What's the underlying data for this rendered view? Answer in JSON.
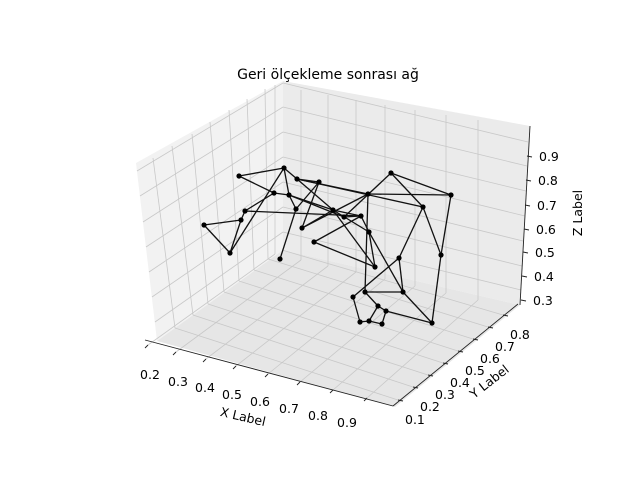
{
  "chart_data": {
    "type": "network-3d",
    "title": "Geri ölçekleme sonrası ağ",
    "xlabel": "X Label",
    "ylabel": "Y Label",
    "zlabel": "Z Label",
    "x_ticks": [
      "0.2",
      "0.3",
      "0.4",
      "0.5",
      "0.6",
      "0.7",
      "0.8",
      "0.9"
    ],
    "y_ticks": [
      "0.1",
      "0.2",
      "0.3",
      "0.4",
      "0.5",
      "0.6",
      "0.7",
      "0.8"
    ],
    "z_ticks": [
      "0.3",
      "0.4",
      "0.5",
      "0.6",
      "0.7",
      "0.8",
      "0.9"
    ],
    "grid": true,
    "node_color": "#000000",
    "edge_color": "#111111",
    "pane_color": "#f2f2f2",
    "nodes": [
      {
        "id": 1,
        "pos": [
          239,
          176
        ]
      },
      {
        "id": 2,
        "pos": [
          284,
          168
        ]
      },
      {
        "id": 3,
        "pos": [
          297,
          179
        ]
      },
      {
        "id": 4,
        "pos": [
          319,
          182
        ]
      },
      {
        "id": 5,
        "pos": [
          274,
          193
        ]
      },
      {
        "id": 6,
        "pos": [
          289,
          195
        ]
      },
      {
        "id": 7,
        "pos": [
          391,
          173
        ]
      },
      {
        "id": 8,
        "pos": [
          451,
          195
        ]
      },
      {
        "id": 9,
        "pos": [
          368,
          194
        ]
      },
      {
        "id": 10,
        "pos": [
          423,
          207
        ]
      },
      {
        "id": 11,
        "pos": [
          245,
          211
        ]
      },
      {
        "id": 12,
        "pos": [
          296,
          209
        ]
      },
      {
        "id": 13,
        "pos": [
          333,
          210
        ]
      },
      {
        "id": 14,
        "pos": [
          344,
          217
        ]
      },
      {
        "id": 15,
        "pos": [
          361,
          216
        ]
      },
      {
        "id": 16,
        "pos": [
          241,
          220
        ]
      },
      {
        "id": 17,
        "pos": [
          204,
          225
        ]
      },
      {
        "id": 18,
        "pos": [
          302,
          228
        ]
      },
      {
        "id": 19,
        "pos": [
          369,
          232
        ]
      },
      {
        "id": 20,
        "pos": [
          314,
          242
        ]
      },
      {
        "id": 21,
        "pos": [
          230,
          253
        ]
      },
      {
        "id": 22,
        "pos": [
          280,
          259
        ]
      },
      {
        "id": 23,
        "pos": [
          441,
          255
        ]
      },
      {
        "id": 24,
        "pos": [
          399,
          258
        ]
      },
      {
        "id": 25,
        "pos": [
          375,
          267
        ]
      },
      {
        "id": 26,
        "pos": [
          365,
          292
        ]
      },
      {
        "id": 27,
        "pos": [
          403,
          292
        ]
      },
      {
        "id": 28,
        "pos": [
          353,
          297
        ]
      },
      {
        "id": 29,
        "pos": [
          378,
          306
        ]
      },
      {
        "id": 30,
        "pos": [
          386,
          311
        ]
      },
      {
        "id": 31,
        "pos": [
          432,
          323
        ]
      },
      {
        "id": 32,
        "pos": [
          360,
          322
        ]
      },
      {
        "id": 33,
        "pos": [
          369,
          321
        ]
      },
      {
        "id": 34,
        "pos": [
          382,
          324
        ]
      }
    ],
    "edges": [
      [
        1,
        2
      ],
      [
        1,
        5
      ],
      [
        2,
        3
      ],
      [
        2,
        6
      ],
      [
        3,
        4
      ],
      [
        3,
        9
      ],
      [
        3,
        10
      ],
      [
        3,
        13
      ],
      [
        4,
        12
      ],
      [
        5,
        6
      ],
      [
        5,
        11
      ],
      [
        6,
        12
      ],
      [
        6,
        13
      ],
      [
        6,
        14
      ],
      [
        7,
        8
      ],
      [
        7,
        14
      ],
      [
        7,
        10
      ],
      [
        8,
        9
      ],
      [
        8,
        23
      ],
      [
        9,
        18
      ],
      [
        9,
        26
      ],
      [
        10,
        23
      ],
      [
        10,
        24
      ],
      [
        11,
        16
      ],
      [
        11,
        15
      ],
      [
        12,
        22
      ],
      [
        13,
        15
      ],
      [
        13,
        18
      ],
      [
        13,
        19
      ],
      [
        13,
        25
      ],
      [
        14,
        15
      ],
      [
        15,
        20
      ],
      [
        15,
        19
      ],
      [
        16,
        17
      ],
      [
        16,
        21
      ],
      [
        17,
        21
      ],
      [
        19,
        27
      ],
      [
        20,
        25
      ],
      [
        21,
        2
      ],
      [
        18,
        4
      ],
      [
        23,
        31
      ],
      [
        24,
        27
      ],
      [
        24,
        28
      ],
      [
        25,
        19
      ],
      [
        26,
        27
      ],
      [
        26,
        29
      ],
      [
        27,
        31
      ],
      [
        28,
        32
      ],
      [
        29,
        30
      ],
      [
        29,
        33
      ],
      [
        30,
        31
      ],
      [
        30,
        34
      ],
      [
        32,
        33
      ],
      [
        33,
        34
      ],
      [
        1,
        1
      ]
    ]
  }
}
